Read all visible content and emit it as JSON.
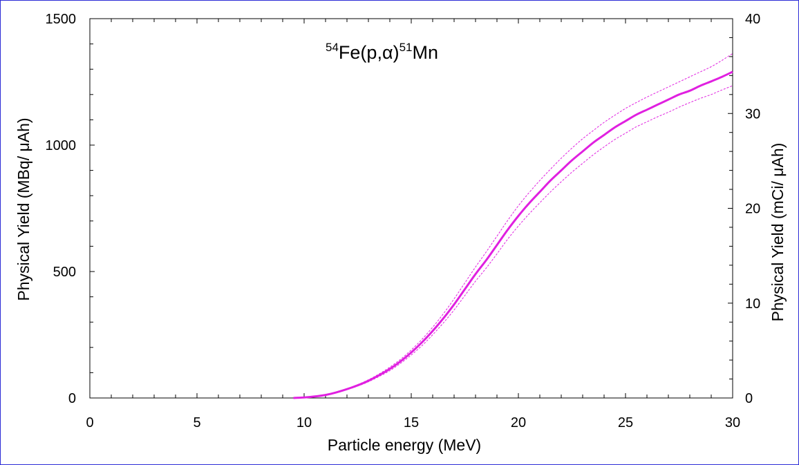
{
  "chart_data": {
    "type": "line",
    "title": {
      "target_mass": "54",
      "target": "Fe(p,",
      "particle": "α",
      "close": ")",
      "product_mass": "51",
      "product": "Mn"
    },
    "xlabel": "Particle energy (MeV)",
    "ylabel": "Physical Yield (MBq/ μAh)",
    "y2label": "Physical Yield (mCi/ μAh)",
    "xlim": [
      0,
      30
    ],
    "ylim": [
      0,
      1500
    ],
    "y2lim": [
      0,
      40
    ],
    "x_ticks": [
      "0",
      "5",
      "10",
      "15",
      "20",
      "25",
      "30"
    ],
    "y_ticks": [
      "0",
      "500",
      "1000",
      "1500"
    ],
    "y2_ticks": [
      "0",
      "10",
      "20",
      "30",
      "40"
    ],
    "grid": false,
    "legend": "none",
    "colors": {
      "series": "#e020e0",
      "frame": "#2b2bd6"
    },
    "x": [
      9.5,
      10,
      10.5,
      11,
      11.5,
      12,
      12.5,
      13,
      13.5,
      14,
      14.5,
      15,
      15.5,
      16,
      16.5,
      17,
      17.5,
      18,
      18.5,
      19,
      19.5,
      20,
      20.5,
      21,
      21.5,
      22,
      22.5,
      23,
      23.5,
      24,
      24.5,
      25,
      25.5,
      26,
      26.5,
      27,
      27.5,
      28,
      28.5,
      29,
      29.5,
      30
    ],
    "series": [
      {
        "style": "solid",
        "values": [
          0,
          2,
          6,
          12,
          22,
          35,
          50,
          68,
          90,
          115,
          145,
          180,
          220,
          265,
          315,
          370,
          430,
          490,
          545,
          605,
          665,
          720,
          770,
          815,
          860,
          900,
          940,
          975,
          1010,
          1040,
          1070,
          1095,
          1120,
          1140,
          1160,
          1180,
          1200,
          1215,
          1235,
          1252,
          1270,
          1290
        ]
      },
      {
        "style": "dashed",
        "values": [
          0,
          2,
          6,
          13,
          23,
          37,
          53,
          72,
          95,
          122,
          153,
          190,
          232,
          280,
          333,
          392,
          455,
          518,
          578,
          640,
          702,
          760,
          812,
          860,
          905,
          948,
          988,
          1025,
          1058,
          1090,
          1118,
          1145,
          1168,
          1190,
          1210,
          1230,
          1250,
          1270,
          1290,
          1310,
          1335,
          1362
        ]
      },
      {
        "style": "dashed",
        "values": [
          0,
          1,
          5,
          11,
          20,
          33,
          47,
          64,
          85,
          108,
          137,
          170,
          207,
          250,
          297,
          348,
          405,
          462,
          514,
          570,
          628,
          680,
          728,
          772,
          815,
          855,
          893,
          928,
          962,
          993,
          1022,
          1047,
          1072,
          1092,
          1112,
          1130,
          1150,
          1168,
          1185,
          1200,
          1218,
          1235
        ]
      }
    ]
  }
}
